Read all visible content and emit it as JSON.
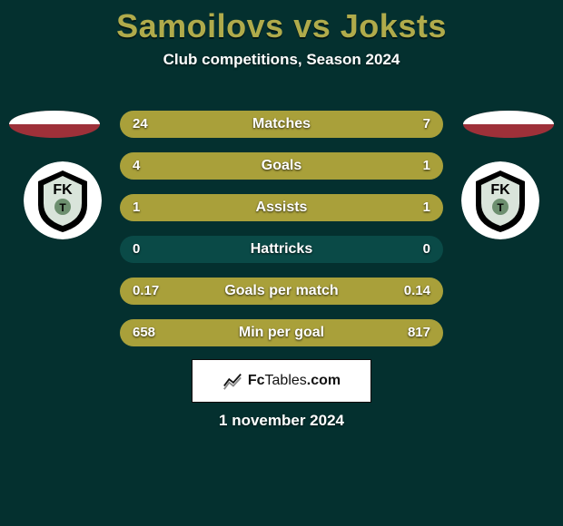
{
  "title": {
    "player1": "Samoilovs",
    "vs": "vs",
    "player2": "Joksts",
    "color": "#b0ab4b"
  },
  "subtitle": "Club competitions, Season 2024",
  "date": "1 november 2024",
  "footer": {
    "brand_fc": "Fc",
    "brand_tables": "Tables",
    "brand_com": ".com"
  },
  "flags": {
    "left": {
      "top": "#ffffff",
      "bottom": "#9e3039"
    },
    "right": {
      "top": "#ffffff",
      "bottom": "#9e3039"
    }
  },
  "club_badge": {
    "bg": "#ffffff",
    "shield_fill": "#000000",
    "inner": "#d9e4da",
    "text_top": "FK",
    "text_bottom": "T"
  },
  "bars": {
    "track_color": "#0a4a47",
    "left_color": "#a9a03a",
    "right_color": "#a9a03a",
    "height": 30,
    "radius": 15,
    "gap": 16,
    "label_fontsize": 16,
    "value_fontsize": 15,
    "rows": [
      {
        "label": "Matches",
        "left_value": "24",
        "right_value": "7",
        "left_frac": 0.774,
        "right_frac": 0.226
      },
      {
        "label": "Goals",
        "left_value": "4",
        "right_value": "1",
        "left_frac": 0.8,
        "right_frac": 0.2
      },
      {
        "label": "Assists",
        "left_value": "1",
        "right_value": "1",
        "left_frac": 0.5,
        "right_frac": 0.5
      },
      {
        "label": "Hattricks",
        "left_value": "0",
        "right_value": "0",
        "left_frac": 0.0,
        "right_frac": 0.0
      },
      {
        "label": "Goals per match",
        "left_value": "0.17",
        "right_value": "0.14",
        "left_frac": 0.548,
        "right_frac": 0.452
      },
      {
        "label": "Min per goal",
        "left_value": "658",
        "right_value": "817",
        "left_frac": 0.446,
        "right_frac": 0.554
      }
    ]
  },
  "colors": {
    "background": "#04302f",
    "text": "#ffffff"
  }
}
